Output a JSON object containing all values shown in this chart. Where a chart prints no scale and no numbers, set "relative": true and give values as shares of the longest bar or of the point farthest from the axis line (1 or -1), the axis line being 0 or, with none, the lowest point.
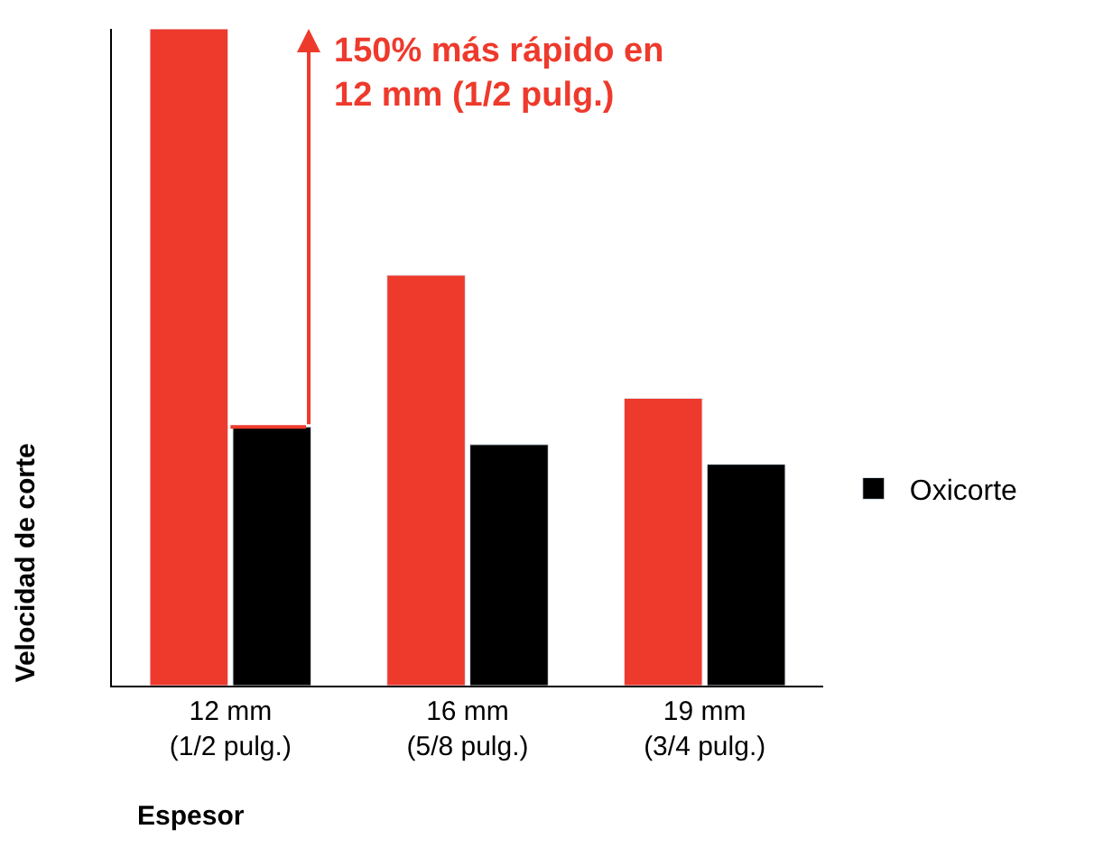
{
  "chart_data": {
    "type": "bar",
    "relative": true,
    "xlabel": "Espesor",
    "ylabel": "Velocidad de corte",
    "categories": [
      "12 mm\n(1/2 pulg.)",
      "16 mm\n(5/8 pulg.)",
      "19 mm\n(3/4 pulg.)"
    ],
    "series": [
      {
        "color": "#ee3a2c",
        "values": [
          1,
          0.625,
          0.4375
        ]
      },
      {
        "name": "Oxicorte",
        "color": "#000000",
        "values": [
          0.394,
          0.367,
          0.337
        ]
      }
    ],
    "annotations": [
      "150% más rápido en\n12 mm (1/2 pulg.)"
    ],
    "legend": "right"
  }
}
